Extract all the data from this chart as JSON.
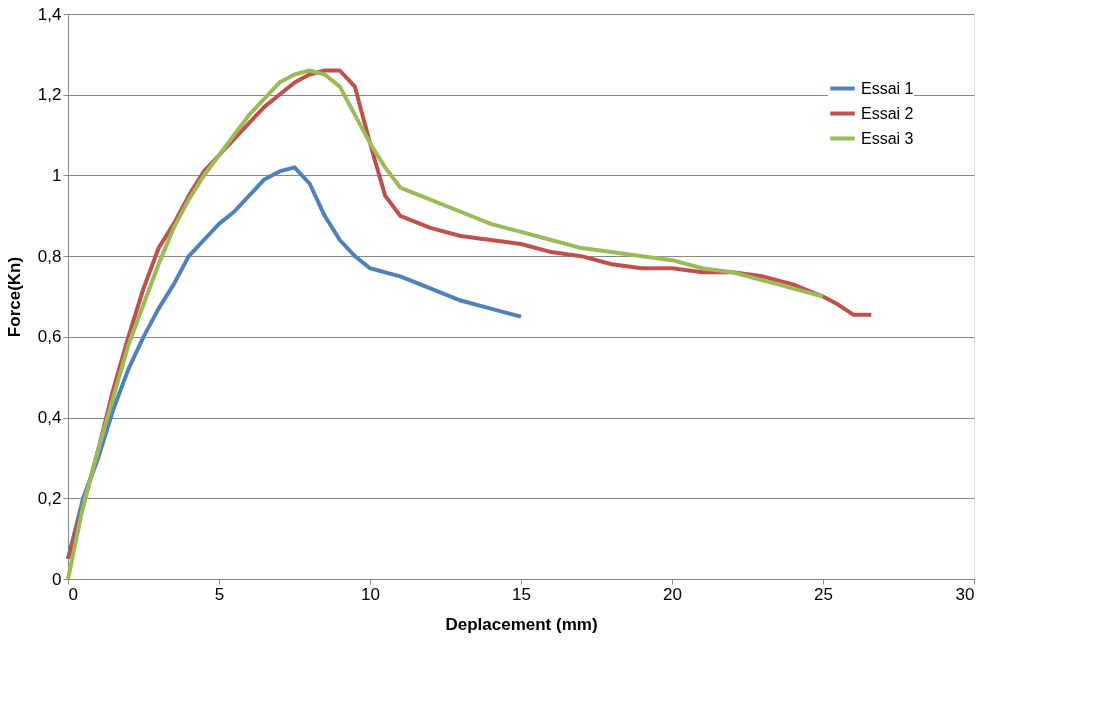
{
  "chart_data": {
    "type": "line",
    "xlabel": "Deplacement (mm)",
    "ylabel": "Force(Kn)",
    "xlim": [
      0,
      30
    ],
    "xticks": [
      0,
      5,
      10,
      15,
      20,
      25,
      30
    ],
    "ylim": [
      0,
      1.4
    ],
    "yticks": [
      0,
      {
        "value": 0.2,
        "label": "0,2"
      },
      {
        "value": 0.4,
        "label": "0,4"
      },
      {
        "value": 0.6,
        "label": "0,6"
      },
      {
        "value": 0.8,
        "label": "0,8"
      },
      1,
      {
        "value": 1.2,
        "label": "1,2"
      },
      {
        "value": 1.4,
        "label": "1,4"
      }
    ],
    "grid": "y",
    "legend": "top right",
    "marker": "none",
    "line_style": "solid",
    "series": [
      {
        "name": "Essai 1",
        "color": "#4f81bd",
        "x": [
          0,
          0.5,
          1,
          1.5,
          2,
          2.5,
          3,
          3.5,
          4,
          4.5,
          5,
          5.5,
          6,
          6.5,
          7,
          7.5,
          8,
          8.5,
          9,
          9.5,
          10,
          11,
          12,
          13,
          14,
          15
        ],
        "values": [
          0.05,
          0.2,
          0.3,
          0.42,
          0.52,
          0.6,
          0.67,
          0.73,
          0.8,
          0.84,
          0.88,
          0.91,
          0.95,
          0.99,
          1.01,
          1.02,
          0.98,
          0.9,
          0.84,
          0.8,
          0.77,
          0.75,
          0.72,
          0.69,
          0.67,
          0.65
        ]
      },
      {
        "name": "Essai 2",
        "color": "#c0504d",
        "x": [
          0,
          0.5,
          1,
          1.5,
          2,
          2.5,
          3,
          3.5,
          4,
          4.5,
          5,
          5.5,
          6,
          6.5,
          7,
          7.5,
          8,
          8.5,
          9,
          9.5,
          10,
          10.5,
          11,
          12,
          13,
          14,
          15,
          16,
          17,
          18,
          19,
          20,
          21,
          22,
          23,
          24,
          25,
          25.5,
          26,
          26.6
        ],
        "values": [
          0.05,
          0.18,
          0.32,
          0.47,
          0.6,
          0.72,
          0.82,
          0.88,
          0.95,
          1.01,
          1.05,
          1.09,
          1.13,
          1.17,
          1.2,
          1.23,
          1.25,
          1.26,
          1.26,
          1.22,
          1.08,
          0.95,
          0.9,
          0.87,
          0.85,
          0.84,
          0.83,
          0.81,
          0.8,
          0.78,
          0.77,
          0.77,
          0.76,
          0.76,
          0.75,
          0.73,
          0.7,
          0.68,
          0.655,
          0.655
        ]
      },
      {
        "name": "Essai 3",
        "color": "#9bbb59",
        "x": [
          0,
          0.5,
          1,
          1.5,
          2,
          2.5,
          3,
          3.5,
          4,
          4.5,
          5,
          5.5,
          6,
          6.5,
          7,
          7.5,
          8,
          8.5,
          9,
          9.5,
          10,
          10.5,
          11,
          12,
          13,
          14,
          15,
          16,
          17,
          18,
          19,
          20,
          21,
          22,
          23,
          24,
          25
        ],
        "values": [
          0.0,
          0.18,
          0.32,
          0.45,
          0.58,
          0.68,
          0.78,
          0.87,
          0.94,
          1.0,
          1.05,
          1.1,
          1.15,
          1.19,
          1.23,
          1.25,
          1.26,
          1.25,
          1.22,
          1.15,
          1.08,
          1.02,
          0.97,
          0.94,
          0.91,
          0.88,
          0.86,
          0.84,
          0.82,
          0.81,
          0.8,
          0.79,
          0.77,
          0.76,
          0.74,
          0.72,
          0.7
        ]
      }
    ]
  }
}
